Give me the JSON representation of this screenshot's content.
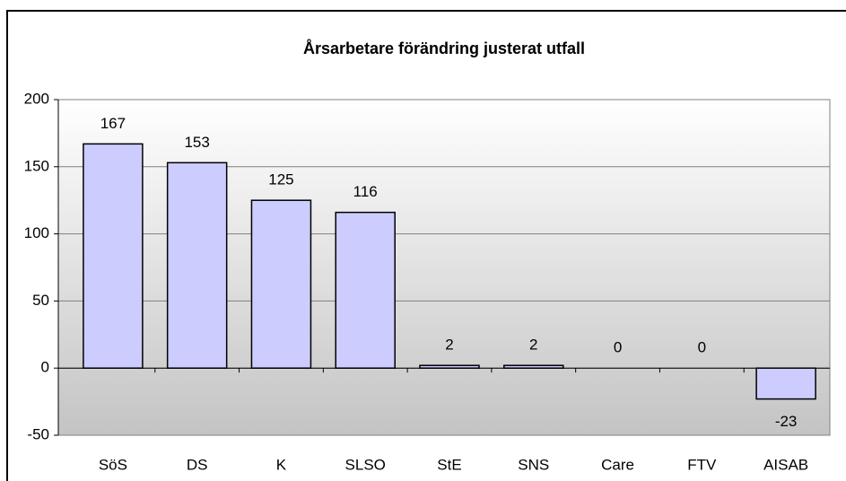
{
  "chart_data": {
    "type": "bar",
    "title": "Årsarbetare förändring justerat utfall",
    "categories": [
      "SöS",
      "DS",
      "K",
      "SLSO",
      "StE",
      "SNS",
      "Care",
      "FTV",
      "AISAB"
    ],
    "values": [
      167,
      153,
      125,
      116,
      2,
      2,
      0,
      0,
      -23
    ],
    "color": "#ccccff",
    "ylim": [
      -50,
      200
    ],
    "yticks": [
      -50,
      0,
      50,
      100,
      150,
      200
    ],
    "grid": true
  }
}
